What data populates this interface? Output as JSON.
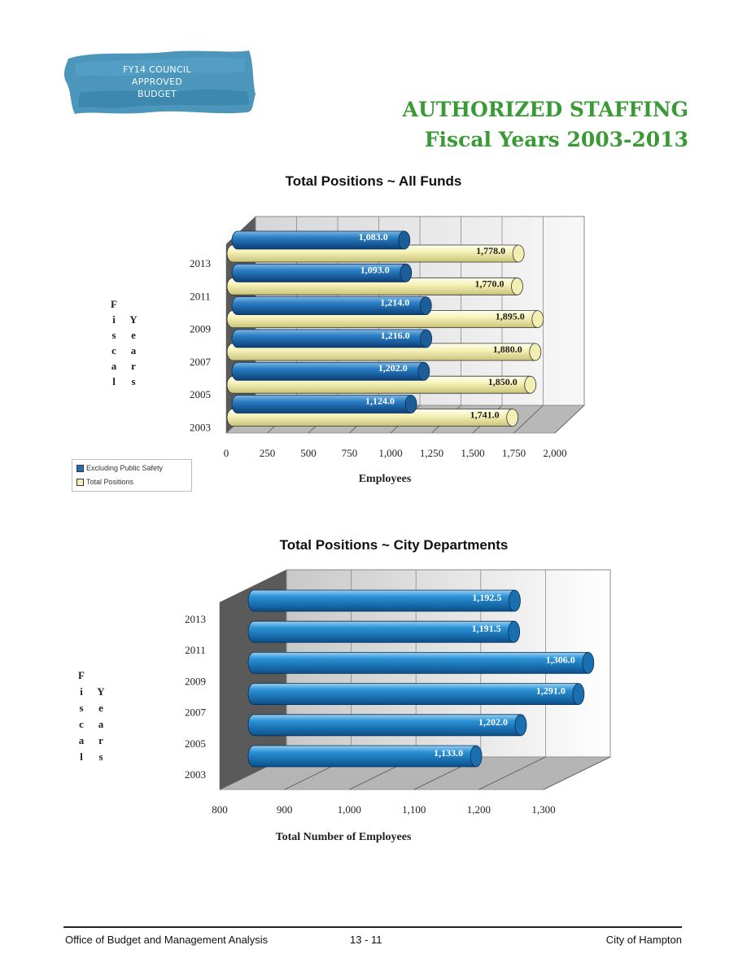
{
  "stamp": {
    "line1": "FY14 COUNCIL",
    "line2": "APPROVED",
    "line3": "BUDGET",
    "color": "#3d8db5"
  },
  "header": {
    "title_line1": "AUTHORIZED STAFFING",
    "title_line2": "Fiscal Years 2003-2013",
    "color": "#3a9a36"
  },
  "footer": {
    "left": "Office of Budget and Management Analysis",
    "center": "13 - 11",
    "right": "City of Hampton"
  },
  "chart_data": [
    {
      "type": "bar",
      "orientation": "horizontal",
      "style": "3d-cylinder",
      "title": "Total Positions ~ All Funds",
      "xlabel": "Employees",
      "ylabel": "Fiscal Years",
      "categories": [
        "2013",
        "2011",
        "2009",
        "2007",
        "2005",
        "2003"
      ],
      "xlim": [
        0,
        2000
      ],
      "xticks": [
        "0",
        "250",
        "500",
        "750",
        "1,000",
        "1,250",
        "1,500",
        "1,750",
        "2,000"
      ],
      "series": [
        {
          "name": "Excluding Public Safety",
          "color": "#1f6fb2",
          "values": [
            1083.0,
            1093.0,
            1214.0,
            1216.0,
            1202.0,
            1124.0
          ],
          "labels": [
            "1,083.0",
            "1,093.0",
            "1,214.0",
            "1,216.0",
            "1,202.0",
            "1,124.0"
          ]
        },
        {
          "name": "Total Positions",
          "color": "#f4f0b6",
          "values": [
            1778.0,
            1770.0,
            1895.0,
            1880.0,
            1850.0,
            1741.0
          ],
          "labels": [
            "1,778.0",
            "1,770.0",
            "1,895.0",
            "1,880.0",
            "1,850.0",
            "1,741.0"
          ]
        }
      ],
      "legend": "bottom-left",
      "grid": true
    },
    {
      "type": "bar",
      "orientation": "horizontal",
      "style": "3d-cylinder",
      "title": "Total Positions ~ City Departments",
      "xlabel": "Total Number of Employees",
      "ylabel": "Fiscal Years",
      "categories": [
        "2013",
        "2011",
        "2009",
        "2007",
        "2005",
        "2003"
      ],
      "xlim": [
        800,
        1300
      ],
      "xticks": [
        "800",
        "900",
        "1,000",
        "1,100",
        "1,200",
        "1,300"
      ],
      "series": [
        {
          "color": "#1b82c8",
          "values": [
            1192.5,
            1191.5,
            1306.0,
            1291.0,
            1202.0,
            1133.0
          ],
          "labels": [
            "1,192.5",
            "1,191.5",
            "1,306.0",
            "1,291.0",
            "1,202.0",
            "1,133.0"
          ]
        }
      ],
      "grid": true
    }
  ]
}
